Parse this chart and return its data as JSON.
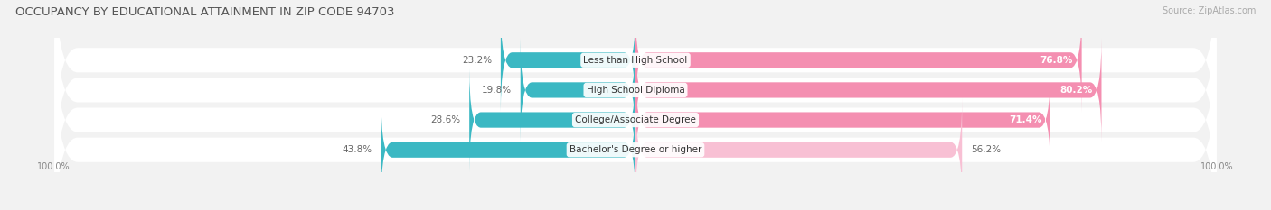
{
  "title": "OCCUPANCY BY EDUCATIONAL ATTAINMENT IN ZIP CODE 94703",
  "source": "Source: ZipAtlas.com",
  "categories": [
    "Less than High School",
    "High School Diploma",
    "College/Associate Degree",
    "Bachelor's Degree or higher"
  ],
  "owner_pct": [
    23.2,
    19.8,
    28.6,
    43.8
  ],
  "renter_pct": [
    76.8,
    80.2,
    71.4,
    56.2
  ],
  "owner_color": "#3bb8c3",
  "renter_color": "#f48fb1",
  "renter_color_light": "#f8c0d4",
  "bg_color": "#f2f2f2",
  "row_bg_color": "#ffffff",
  "title_fontsize": 9.5,
  "source_fontsize": 7,
  "pct_fontsize": 7.5,
  "cat_fontsize": 7.5,
  "axis_label_fontsize": 7,
  "legend_fontsize": 7.5,
  "left_label": "100.0%",
  "right_label": "100.0%"
}
